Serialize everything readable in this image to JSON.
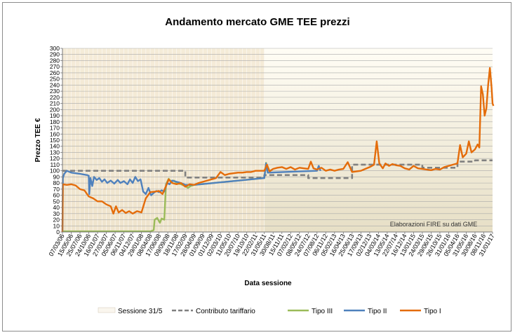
{
  "chart_data": {
    "type": "line",
    "title": "Andamento mercato GME TEE prezzi",
    "xlabel": "Data sessione",
    "ylabel": "Prezzo TEE €",
    "ylim": [
      0,
      300
    ],
    "ytick_step": 10,
    "grid": true,
    "legend_position": "bottom",
    "annotation": "Elaborazioni FIRE su dati GME",
    "x_tick_labels": [
      "07/03/06",
      "15/05/06",
      "25/07/06",
      "24/10/06",
      "16/01/07",
      "27/03/07",
      "05/06/07",
      "06/11/07",
      "04/12/07",
      "29/01/08",
      "08/04/08",
      "17/06/08",
      "09/09/08",
      "18/11/08",
      "17/02/09",
      "28/04/09",
      "01/09/09",
      "01/12/09",
      "02/03/10",
      "11/05/10",
      "20/07/10",
      "19/10/10",
      "22/02/11",
      "31/05/11",
      "30/08/11",
      "15/11/11",
      "07/02/12",
      "08/05/12",
      "24/07/12",
      "07/08/12",
      "06/11/12",
      "05/02/13",
      "16/04/13",
      "25/06/13",
      "17/09/13",
      "02/12/13",
      "04/03/14",
      "13/05/14",
      "22/07/14",
      "16/12/14",
      "13/01/15",
      "24/03/15",
      "29/06/15",
      "26/10/15",
      "31/01/16",
      "05/04/16",
      "31/05/16",
      "30/08/16",
      "08/11/16",
      "31/01/17"
    ],
    "shaded_band": {
      "name": "Sessione 31/5",
      "from_index": 0,
      "to_index": 23,
      "color": "#f1e6cf"
    },
    "series": [
      {
        "name": "Contributo tariffario",
        "color": "#808080",
        "style": "dashed",
        "points": [
          [
            0,
            100
          ],
          [
            14,
            100
          ],
          [
            14,
            89
          ],
          [
            23,
            89
          ],
          [
            23,
            93
          ],
          [
            28,
            93
          ],
          [
            28,
            88
          ],
          [
            33,
            88
          ],
          [
            33,
            110
          ],
          [
            41,
            110
          ],
          [
            41,
            105
          ],
          [
            45,
            105
          ],
          [
            45,
            115
          ],
          [
            47,
            115
          ],
          [
            47,
            117
          ],
          [
            49,
            117
          ]
        ]
      },
      {
        "name": "Tipo III",
        "color": "#9bbb59",
        "style": "solid",
        "points": [
          [
            0,
            1
          ],
          [
            10,
            1
          ],
          [
            10.4,
            3
          ],
          [
            10.5,
            20
          ],
          [
            10.8,
            23
          ],
          [
            11.1,
            15
          ],
          [
            11.3,
            22
          ],
          [
            11.6,
            20
          ],
          [
            11.8,
            78
          ],
          [
            12.1,
            87
          ],
          [
            12.4,
            82
          ],
          [
            12.7,
            84
          ],
          [
            13,
            80
          ],
          [
            13.5,
            78
          ],
          [
            14,
            75
          ],
          [
            14.3,
            72
          ],
          [
            14.6,
            75
          ],
          [
            15,
            77
          ],
          [
            23,
            88
          ],
          [
            23.2,
            113
          ],
          [
            23.4,
            96
          ]
        ]
      },
      {
        "name": "Tipo II",
        "color": "#4f81bd",
        "style": "solid",
        "points": [
          [
            0,
            2
          ],
          [
            0.05,
            88
          ],
          [
            0.2,
            95
          ],
          [
            0.5,
            100
          ],
          [
            1,
            97
          ],
          [
            1.5,
            96
          ],
          [
            2,
            95
          ],
          [
            2.4,
            94
          ],
          [
            2.8,
            93
          ],
          [
            3,
            92
          ],
          [
            3.05,
            62
          ],
          [
            3.2,
            88
          ],
          [
            3.4,
            75
          ],
          [
            3.6,
            90
          ],
          [
            3.9,
            85
          ],
          [
            4.2,
            88
          ],
          [
            4.5,
            82
          ],
          [
            4.8,
            86
          ],
          [
            5.1,
            80
          ],
          [
            5.5,
            84
          ],
          [
            5.9,
            79
          ],
          [
            6.3,
            85
          ],
          [
            6.6,
            80
          ],
          [
            7,
            83
          ],
          [
            7.4,
            78
          ],
          [
            7.7,
            86
          ],
          [
            8,
            80
          ],
          [
            8.3,
            90
          ],
          [
            8.6,
            83
          ],
          [
            8.9,
            86
          ],
          [
            9.2,
            66
          ],
          [
            9.5,
            62
          ],
          [
            9.8,
            72
          ],
          [
            10.1,
            60
          ],
          [
            10.4,
            64
          ],
          [
            10.7,
            67
          ],
          [
            11,
            65
          ],
          [
            11.3,
            68
          ],
          [
            11.6,
            66
          ],
          [
            11.9,
            80
          ],
          [
            12.2,
            78
          ],
          [
            12.5,
            84
          ],
          [
            13,
            82
          ],
          [
            13.5,
            80
          ],
          [
            14,
            77
          ],
          [
            15,
            77
          ],
          [
            23,
            88
          ],
          [
            23.2,
            112
          ],
          [
            23.4,
            97
          ],
          [
            29,
            100
          ],
          [
            29.2,
            108
          ],
          [
            29.4,
            100
          ]
        ]
      },
      {
        "name": "Tipo I",
        "color": "#e46c0a",
        "style": "solid",
        "points": [
          [
            0,
            0
          ],
          [
            0.05,
            78
          ],
          [
            0.5,
            77
          ],
          [
            1,
            78
          ],
          [
            1.5,
            76
          ],
          [
            2,
            70
          ],
          [
            2.5,
            68
          ],
          [
            3,
            58
          ],
          [
            3.5,
            55
          ],
          [
            4,
            50
          ],
          [
            4.5,
            50
          ],
          [
            5,
            45
          ],
          [
            5.5,
            42
          ],
          [
            5.8,
            30
          ],
          [
            6.1,
            42
          ],
          [
            6.4,
            32
          ],
          [
            6.8,
            36
          ],
          [
            7.2,
            31
          ],
          [
            7.6,
            34
          ],
          [
            8,
            30
          ],
          [
            8.5,
            34
          ],
          [
            9,
            32
          ],
          [
            9.5,
            55
          ],
          [
            10,
            65
          ],
          [
            10.5,
            66
          ],
          [
            11,
            67
          ],
          [
            11.4,
            62
          ],
          [
            11.8,
            75
          ],
          [
            12.1,
            86
          ],
          [
            12.5,
            80
          ],
          [
            13,
            78
          ],
          [
            13.5,
            80
          ],
          [
            14,
            74
          ],
          [
            14.5,
            78
          ],
          [
            15,
            77
          ],
          [
            15.5,
            80
          ],
          [
            16,
            82
          ],
          [
            16.5,
            84
          ],
          [
            17,
            86
          ],
          [
            17.5,
            88
          ],
          [
            18,
            98
          ],
          [
            18.5,
            93
          ],
          [
            19,
            95
          ],
          [
            19.5,
            96
          ],
          [
            20,
            97
          ],
          [
            20.5,
            97
          ],
          [
            21,
            98
          ],
          [
            21.5,
            98
          ],
          [
            22,
            100
          ],
          [
            22.5,
            100
          ],
          [
            23,
            100
          ],
          [
            23.3,
            110
          ],
          [
            23.6,
            99
          ],
          [
            24,
            103
          ],
          [
            24.5,
            105
          ],
          [
            25,
            106
          ],
          [
            25.5,
            103
          ],
          [
            26,
            106
          ],
          [
            26.5,
            102
          ],
          [
            27,
            105
          ],
          [
            27.5,
            104
          ],
          [
            28,
            103
          ],
          [
            28.3,
            115
          ],
          [
            28.6,
            104
          ],
          [
            29,
            102
          ],
          [
            29.5,
            105
          ],
          [
            30,
            100
          ],
          [
            30.5,
            102
          ],
          [
            31,
            100
          ],
          [
            31.5,
            102
          ],
          [
            32,
            103
          ],
          [
            32.5,
            114
          ],
          [
            33,
            98
          ],
          [
            33.5,
            99
          ],
          [
            34,
            100
          ],
          [
            34.5,
            103
          ],
          [
            35,
            106
          ],
          [
            35.5,
            110
          ],
          [
            35.8,
            148
          ],
          [
            36.1,
            112
          ],
          [
            36.5,
            104
          ],
          [
            36.8,
            112
          ],
          [
            37.2,
            108
          ],
          [
            37.6,
            111
          ],
          [
            38,
            109
          ],
          [
            38.5,
            108
          ],
          [
            39,
            104
          ],
          [
            39.5,
            102
          ],
          [
            40,
            108
          ],
          [
            40.5,
            104
          ],
          [
            41,
            103
          ],
          [
            41.5,
            102
          ],
          [
            42,
            101
          ],
          [
            42.5,
            103
          ],
          [
            43,
            102
          ],
          [
            43.5,
            106
          ],
          [
            44,
            108
          ],
          [
            44.5,
            110
          ],
          [
            45,
            112
          ],
          [
            45.3,
            142
          ],
          [
            45.6,
            122
          ],
          [
            46,
            128
          ],
          [
            46.3,
            148
          ],
          [
            46.6,
            130
          ],
          [
            47,
            135
          ],
          [
            47.3,
            143
          ],
          [
            47.5,
            138
          ],
          [
            47.7,
            238
          ],
          [
            47.9,
            225
          ],
          [
            48.1,
            190
          ],
          [
            48.3,
            202
          ],
          [
            48.5,
            240
          ],
          [
            48.7,
            268
          ],
          [
            48.9,
            235
          ],
          [
            49,
            210
          ],
          [
            49.1,
            206
          ]
        ]
      }
    ]
  }
}
